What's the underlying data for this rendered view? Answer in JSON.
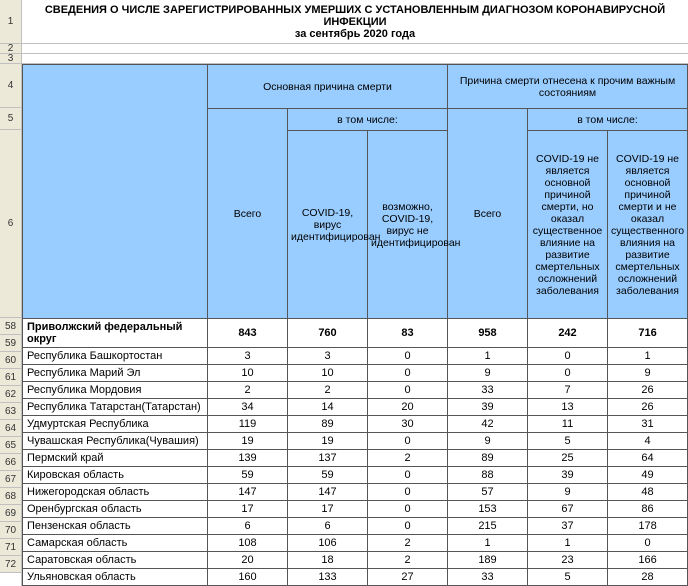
{
  "title": "СВЕДЕНИЯ О ЧИСЛЕ ЗАРЕГИСТРИРОВАННЫХ УМЕРШИХ С УСТАНОВЛЕННЫМ ДИАГНОЗОМ КОРОНАВИРУСНОЙ ИНФЕКЦИИ\nза  сентябрь 2020 года",
  "rownums": {
    "r1": "1",
    "r2": "2",
    "r3": "3",
    "r4": "4",
    "r5": "5",
    "r6": "6",
    "r58": "58",
    "r59": "59",
    "r60": "60",
    "r61": "61",
    "r62": "62",
    "r63": "63",
    "r64": "64",
    "r65": "65",
    "r66": "66",
    "r67": "67",
    "r68": "68",
    "r69": "69",
    "r70": "70",
    "r71": "71",
    "r72": "72"
  },
  "headers": {
    "main_cause": "Основная причина смерти",
    "other_cause": "Причина смерти отнесена к прочим важным состояниям",
    "including": "в том числе:",
    "total": "Всего",
    "covid_ident": "COVID-19, вирус идентифицирован",
    "covid_not_ident": "возможно, COVID-19, вирус не идентифицирован",
    "other_sub1": "COVID-19 не является основной причиной смерти, но оказал существенное влияние на развитие смертельных осложнений заболевания",
    "other_sub2": "COVID-19 не является основной причиной смерти и не оказал существенного влияния на развитие смертельных осложнений заболевания"
  },
  "total_row": {
    "name": "Приволжский федеральный округ",
    "v1": "843",
    "v2": "760",
    "v3": "83",
    "v4": "958",
    "v5": "242",
    "v6": "716"
  },
  "rows": [
    {
      "name": "Республика Башкортостан",
      "v1": "3",
      "v2": "3",
      "v3": "0",
      "v4": "1",
      "v5": "0",
      "v6": "1"
    },
    {
      "name": "Республика Марий Эл",
      "v1": "10",
      "v2": "10",
      "v3": "0",
      "v4": "9",
      "v5": "0",
      "v6": "9"
    },
    {
      "name": "Республика Мордовия",
      "v1": "2",
      "v2": "2",
      "v3": "0",
      "v4": "33",
      "v5": "7",
      "v6": "26"
    },
    {
      "name": "Республика Татарстан(Татарстан)",
      "v1": "34",
      "v2": "14",
      "v3": "20",
      "v4": "39",
      "v5": "13",
      "v6": "26"
    },
    {
      "name": "Удмуртская Республика",
      "v1": "119",
      "v2": "89",
      "v3": "30",
      "v4": "42",
      "v5": "11",
      "v6": "31"
    },
    {
      "name": "Чувашская Республика(Чувашия)",
      "v1": "19",
      "v2": "19",
      "v3": "0",
      "v4": "9",
      "v5": "5",
      "v6": "4"
    },
    {
      "name": "Пермский край",
      "v1": "139",
      "v2": "137",
      "v3": "2",
      "v4": "89",
      "v5": "25",
      "v6": "64"
    },
    {
      "name": "Кировская область",
      "v1": "59",
      "v2": "59",
      "v3": "0",
      "v4": "88",
      "v5": "39",
      "v6": "49"
    },
    {
      "name": "Нижегородская область",
      "v1": "147",
      "v2": "147",
      "v3": "0",
      "v4": "57",
      "v5": "9",
      "v6": "48"
    },
    {
      "name": "Оренбургская область",
      "v1": "17",
      "v2": "17",
      "v3": "0",
      "v4": "153",
      "v5": "67",
      "v6": "86"
    },
    {
      "name": "Пензенская область",
      "v1": "6",
      "v2": "6",
      "v3": "0",
      "v4": "215",
      "v5": "37",
      "v6": "178"
    },
    {
      "name": "Самарская область",
      "v1": "108",
      "v2": "106",
      "v3": "2",
      "v4": "1",
      "v5": "1",
      "v6": "0"
    },
    {
      "name": "Саратовская область",
      "v1": "20",
      "v2": "18",
      "v3": "2",
      "v4": "189",
      "v5": "23",
      "v6": "166"
    },
    {
      "name": "Ульяновская область",
      "v1": "160",
      "v2": "133",
      "v3": "27",
      "v4": "33",
      "v5": "5",
      "v6": "28"
    }
  ],
  "colors": {
    "header_bg": "#99ccff",
    "rownum_bg": "#ece9d8",
    "border": "#555555"
  }
}
